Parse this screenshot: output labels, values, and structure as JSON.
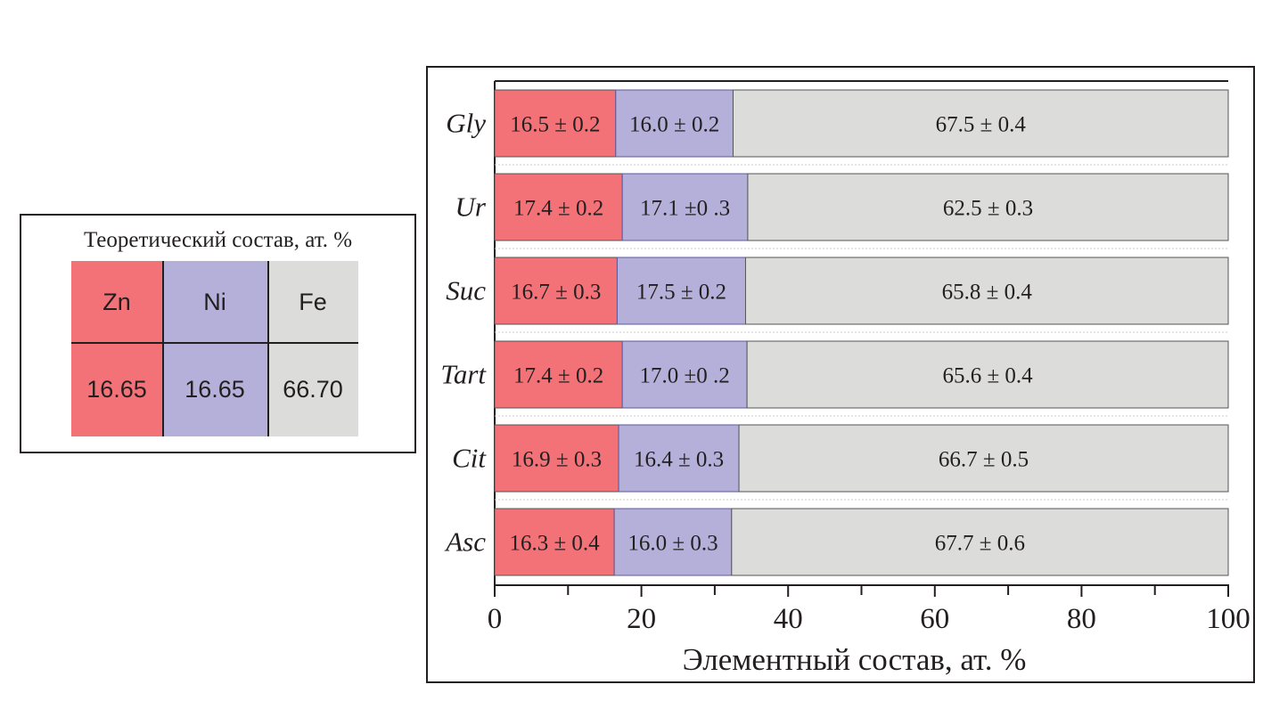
{
  "theory_table": {
    "title": "Теоретический состав,  ат. %",
    "headers": [
      "Zn",
      "Ni",
      "Fe"
    ],
    "values": [
      "16.65",
      "16.65",
      "66.70"
    ]
  },
  "colors": {
    "Zn": "#f27277",
    "Ni": "#b5b0d9",
    "Fe": "#dcdcdb",
    "text": "#231f20"
  },
  "chart_data": {
    "type": "bar",
    "orientation": "horizontal-stacked",
    "xlabel": "Элементный состав, ат. %",
    "ylabel": "",
    "xlim": [
      0,
      100
    ],
    "xticks": [
      "0",
      "20",
      "40",
      "60",
      "80",
      "100"
    ],
    "minor_ticks": [
      10,
      30,
      50,
      70,
      90
    ],
    "categories": [
      "Gly",
      "Ur",
      "Suc",
      "Tart",
      "Cit",
      "Asc"
    ],
    "series": [
      {
        "name": "Zn",
        "values": [
          16.5,
          17.4,
          16.7,
          17.4,
          16.9,
          16.3
        ],
        "labels": [
          "16.5 ± 0.2",
          "17.4 ± 0.2",
          "16.7 ± 0.3",
          "17.4 ± 0.2",
          "16.9 ± 0.3",
          "16.3 ± 0.4"
        ]
      },
      {
        "name": "Ni",
        "values": [
          16.0,
          17.1,
          17.5,
          17.0,
          16.4,
          16.0
        ],
        "labels": [
          "16.0 ± 0.2",
          "17.1 ±0 .3",
          "17.5 ± 0.2",
          "17.0 ±0 .2",
          "16.4 ± 0.3",
          "16.0 ± 0.3"
        ]
      },
      {
        "name": "Fe",
        "values": [
          67.5,
          62.5,
          65.8,
          65.6,
          66.7,
          67.7
        ],
        "labels": [
          "67.5 ± 0.4",
          "62.5 ± 0.3",
          "65.8 ± 0.4",
          "65.6 ± 0.4",
          "66.7 ± 0.5",
          "67.7 ± 0.6"
        ]
      }
    ]
  }
}
